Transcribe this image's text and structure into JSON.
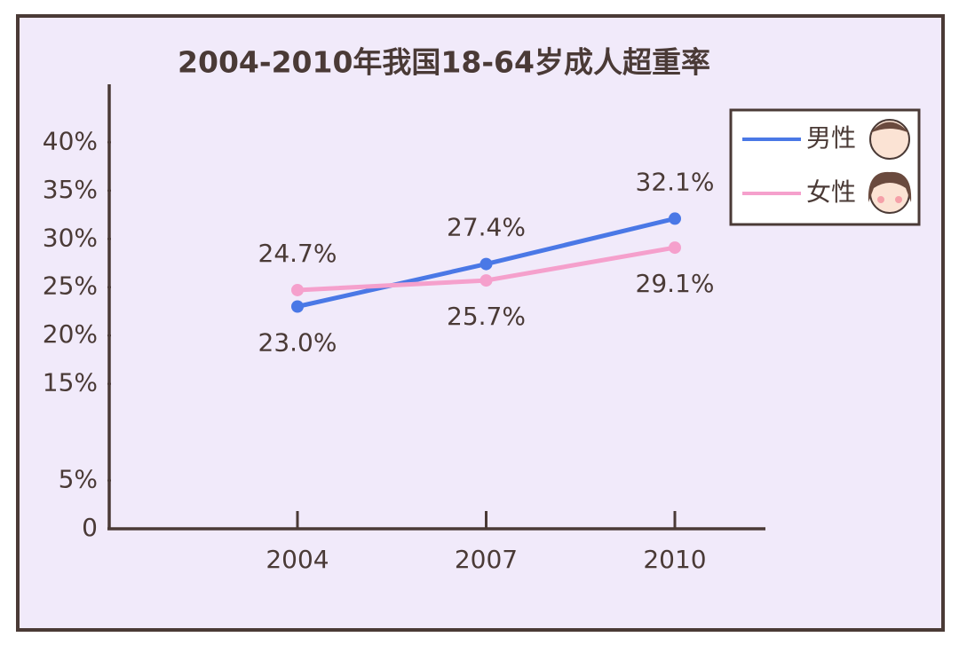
{
  "chart_data": {
    "type": "line",
    "title": "2004-2010年我国18-64岁成人超重率",
    "categories": [
      "2004",
      "2007",
      "2010"
    ],
    "series": [
      {
        "name": "男性",
        "color": "#4a78e6",
        "values": [
          23.0,
          27.4,
          32.1
        ],
        "value_labels": [
          "23.0%",
          "27.4%",
          "32.1%"
        ]
      },
      {
        "name": "女性",
        "color": "#f5a0cc",
        "values": [
          24.7,
          25.7,
          29.1
        ],
        "value_labels": [
          "24.7%",
          "25.7%",
          "29.1%"
        ]
      }
    ],
    "ylim": [
      0,
      46
    ],
    "yticks": [
      0,
      {
        "value": 5,
        "label": "5%"
      },
      {
        "value": 15,
        "label": "15%"
      },
      {
        "value": 20,
        "label": "20%"
      },
      {
        "value": 25,
        "label": "25%"
      },
      {
        "value": 30,
        "label": "30%"
      },
      {
        "value": 35,
        "label": "35%"
      },
      {
        "value": 40,
        "label": "40%"
      }
    ],
    "grid": false,
    "legend": "upper right"
  }
}
